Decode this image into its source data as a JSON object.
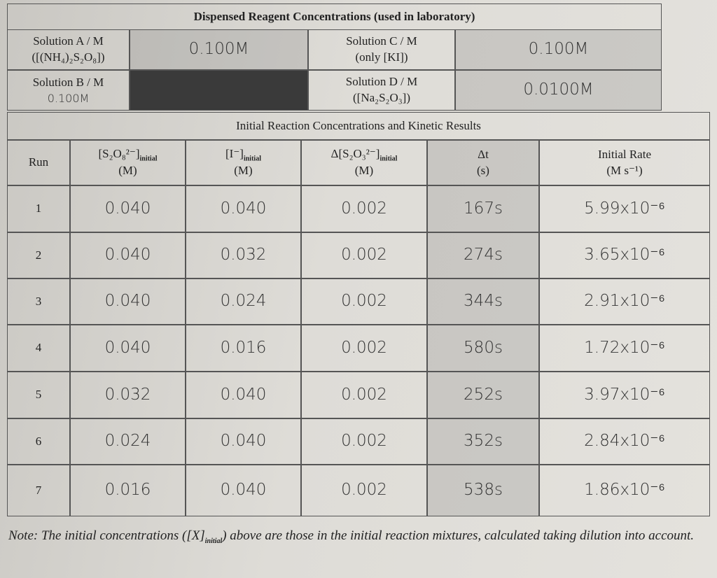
{
  "header": {
    "title": "Dispensed Reagent Concentrations (used in laboratory)"
  },
  "solutions": [
    {
      "label": "Solution A / M",
      "formula": "([(NH₄)₂S₂O₈])",
      "value": "0.100M"
    },
    {
      "label": "Solution C / M",
      "formula": "(only [KI])",
      "value": "0.100M"
    },
    {
      "label": "Solution B / M",
      "note": "0.100M"
    },
    {
      "label": "Solution D / M",
      "formula": "([Na₂S₂O₃])",
      "value": "0.0100M"
    }
  ],
  "results_title": "Initial Reaction Concentrations and Kinetic Results",
  "columns": [
    {
      "main": "Run"
    },
    {
      "main": "[S₂O₈²⁻]",
      "sub": "initial",
      "unit": "(M)"
    },
    {
      "main": "[I⁻]",
      "sub": "initial",
      "unit": "(M)"
    },
    {
      "main": "Δ[S₂O₃²⁻]",
      "sub": "initial",
      "unit": "(M)"
    },
    {
      "main": "Δt",
      "unit": "(s)"
    },
    {
      "main": "Initial Rate",
      "unit": "(M s⁻¹)"
    }
  ],
  "rows": [
    [
      "1",
      "0.040",
      "0.040",
      "0.002",
      "167s",
      "5.99x10⁻⁶"
    ],
    [
      "2",
      "0.040",
      "0.032",
      "0.002",
      "274s",
      "3.65x10⁻⁶"
    ],
    [
      "3",
      "0.040",
      "0.024",
      "0.002",
      "344s",
      "2.91x10⁻⁶"
    ],
    [
      "4",
      "0.040",
      "0.016",
      "0.002",
      "580s",
      "1.72x10⁻⁶"
    ],
    [
      "5",
      "0.032",
      "0.040",
      "0.002",
      "252s",
      "3.97x10⁻⁶"
    ],
    [
      "6",
      "0.024",
      "0.040",
      "0.002",
      "352s",
      "2.84x10⁻⁶"
    ],
    [
      "7",
      "0.016",
      "0.040",
      "0.002",
      "538s",
      "1.86x10⁻⁶"
    ]
  ],
  "note": {
    "before": "Note: The initial concentrations ([X]",
    "sub": "initial",
    "after": ") above are those in the initial reaction mixtures, calculated taking dilution into account."
  }
}
